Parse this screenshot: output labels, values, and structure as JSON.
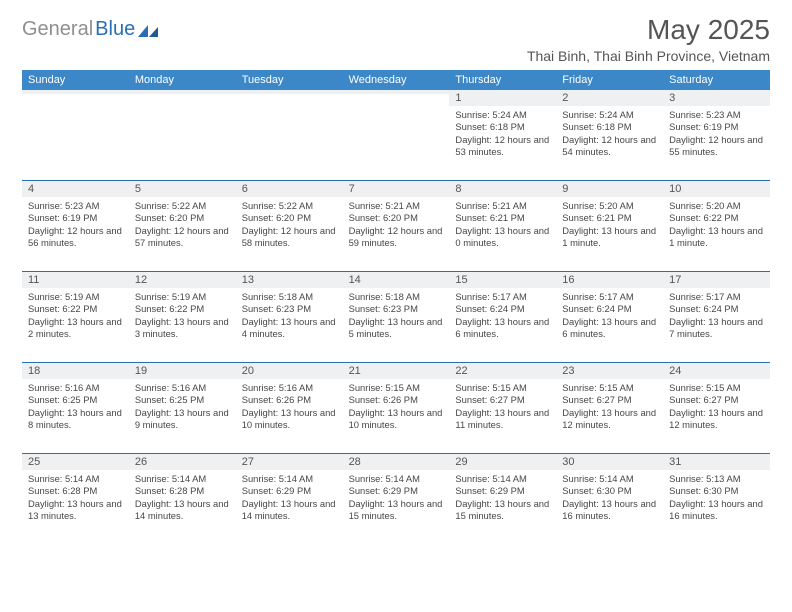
{
  "logo": {
    "word1": "General",
    "word2": "Blue"
  },
  "title": "May 2025",
  "location": "Thai Binh, Thai Binh Province, Vietnam",
  "colors": {
    "header_bg": "#3b87c8",
    "header_text": "#ffffff",
    "rule": "#2b6fb3",
    "daynum_bg": "#eef0f1",
    "body_text": "#474747",
    "title_text": "#555555",
    "logo_gray": "#8f8f8f",
    "logo_blue": "#2b6fb3",
    "page_bg": "#ffffff"
  },
  "dayNames": [
    "Sunday",
    "Monday",
    "Tuesday",
    "Wednesday",
    "Thursday",
    "Friday",
    "Saturday"
  ],
  "weeks": [
    [
      {
        "n": "",
        "sunrise": "",
        "sunset": "",
        "daylight": ""
      },
      {
        "n": "",
        "sunrise": "",
        "sunset": "",
        "daylight": ""
      },
      {
        "n": "",
        "sunrise": "",
        "sunset": "",
        "daylight": ""
      },
      {
        "n": "",
        "sunrise": "",
        "sunset": "",
        "daylight": ""
      },
      {
        "n": "1",
        "sunrise": "Sunrise: 5:24 AM",
        "sunset": "Sunset: 6:18 PM",
        "daylight": "Daylight: 12 hours and 53 minutes."
      },
      {
        "n": "2",
        "sunrise": "Sunrise: 5:24 AM",
        "sunset": "Sunset: 6:18 PM",
        "daylight": "Daylight: 12 hours and 54 minutes."
      },
      {
        "n": "3",
        "sunrise": "Sunrise: 5:23 AM",
        "sunset": "Sunset: 6:19 PM",
        "daylight": "Daylight: 12 hours and 55 minutes."
      }
    ],
    [
      {
        "n": "4",
        "sunrise": "Sunrise: 5:23 AM",
        "sunset": "Sunset: 6:19 PM",
        "daylight": "Daylight: 12 hours and 56 minutes."
      },
      {
        "n": "5",
        "sunrise": "Sunrise: 5:22 AM",
        "sunset": "Sunset: 6:20 PM",
        "daylight": "Daylight: 12 hours and 57 minutes."
      },
      {
        "n": "6",
        "sunrise": "Sunrise: 5:22 AM",
        "sunset": "Sunset: 6:20 PM",
        "daylight": "Daylight: 12 hours and 58 minutes."
      },
      {
        "n": "7",
        "sunrise": "Sunrise: 5:21 AM",
        "sunset": "Sunset: 6:20 PM",
        "daylight": "Daylight: 12 hours and 59 minutes."
      },
      {
        "n": "8",
        "sunrise": "Sunrise: 5:21 AM",
        "sunset": "Sunset: 6:21 PM",
        "daylight": "Daylight: 13 hours and 0 minutes."
      },
      {
        "n": "9",
        "sunrise": "Sunrise: 5:20 AM",
        "sunset": "Sunset: 6:21 PM",
        "daylight": "Daylight: 13 hours and 1 minute."
      },
      {
        "n": "10",
        "sunrise": "Sunrise: 5:20 AM",
        "sunset": "Sunset: 6:22 PM",
        "daylight": "Daylight: 13 hours and 1 minute."
      }
    ],
    [
      {
        "n": "11",
        "sunrise": "Sunrise: 5:19 AM",
        "sunset": "Sunset: 6:22 PM",
        "daylight": "Daylight: 13 hours and 2 minutes."
      },
      {
        "n": "12",
        "sunrise": "Sunrise: 5:19 AM",
        "sunset": "Sunset: 6:22 PM",
        "daylight": "Daylight: 13 hours and 3 minutes."
      },
      {
        "n": "13",
        "sunrise": "Sunrise: 5:18 AM",
        "sunset": "Sunset: 6:23 PM",
        "daylight": "Daylight: 13 hours and 4 minutes."
      },
      {
        "n": "14",
        "sunrise": "Sunrise: 5:18 AM",
        "sunset": "Sunset: 6:23 PM",
        "daylight": "Daylight: 13 hours and 5 minutes."
      },
      {
        "n": "15",
        "sunrise": "Sunrise: 5:17 AM",
        "sunset": "Sunset: 6:24 PM",
        "daylight": "Daylight: 13 hours and 6 minutes."
      },
      {
        "n": "16",
        "sunrise": "Sunrise: 5:17 AM",
        "sunset": "Sunset: 6:24 PM",
        "daylight": "Daylight: 13 hours and 6 minutes."
      },
      {
        "n": "17",
        "sunrise": "Sunrise: 5:17 AM",
        "sunset": "Sunset: 6:24 PM",
        "daylight": "Daylight: 13 hours and 7 minutes."
      }
    ],
    [
      {
        "n": "18",
        "sunrise": "Sunrise: 5:16 AM",
        "sunset": "Sunset: 6:25 PM",
        "daylight": "Daylight: 13 hours and 8 minutes."
      },
      {
        "n": "19",
        "sunrise": "Sunrise: 5:16 AM",
        "sunset": "Sunset: 6:25 PM",
        "daylight": "Daylight: 13 hours and 9 minutes."
      },
      {
        "n": "20",
        "sunrise": "Sunrise: 5:16 AM",
        "sunset": "Sunset: 6:26 PM",
        "daylight": "Daylight: 13 hours and 10 minutes."
      },
      {
        "n": "21",
        "sunrise": "Sunrise: 5:15 AM",
        "sunset": "Sunset: 6:26 PM",
        "daylight": "Daylight: 13 hours and 10 minutes."
      },
      {
        "n": "22",
        "sunrise": "Sunrise: 5:15 AM",
        "sunset": "Sunset: 6:27 PM",
        "daylight": "Daylight: 13 hours and 11 minutes."
      },
      {
        "n": "23",
        "sunrise": "Sunrise: 5:15 AM",
        "sunset": "Sunset: 6:27 PM",
        "daylight": "Daylight: 13 hours and 12 minutes."
      },
      {
        "n": "24",
        "sunrise": "Sunrise: 5:15 AM",
        "sunset": "Sunset: 6:27 PM",
        "daylight": "Daylight: 13 hours and 12 minutes."
      }
    ],
    [
      {
        "n": "25",
        "sunrise": "Sunrise: 5:14 AM",
        "sunset": "Sunset: 6:28 PM",
        "daylight": "Daylight: 13 hours and 13 minutes."
      },
      {
        "n": "26",
        "sunrise": "Sunrise: 5:14 AM",
        "sunset": "Sunset: 6:28 PM",
        "daylight": "Daylight: 13 hours and 14 minutes."
      },
      {
        "n": "27",
        "sunrise": "Sunrise: 5:14 AM",
        "sunset": "Sunset: 6:29 PM",
        "daylight": "Daylight: 13 hours and 14 minutes."
      },
      {
        "n": "28",
        "sunrise": "Sunrise: 5:14 AM",
        "sunset": "Sunset: 6:29 PM",
        "daylight": "Daylight: 13 hours and 15 minutes."
      },
      {
        "n": "29",
        "sunrise": "Sunrise: 5:14 AM",
        "sunset": "Sunset: 6:29 PM",
        "daylight": "Daylight: 13 hours and 15 minutes."
      },
      {
        "n": "30",
        "sunrise": "Sunrise: 5:14 AM",
        "sunset": "Sunset: 6:30 PM",
        "daylight": "Daylight: 13 hours and 16 minutes."
      },
      {
        "n": "31",
        "sunrise": "Sunrise: 5:13 AM",
        "sunset": "Sunset: 6:30 PM",
        "daylight": "Daylight: 13 hours and 16 minutes."
      }
    ]
  ]
}
